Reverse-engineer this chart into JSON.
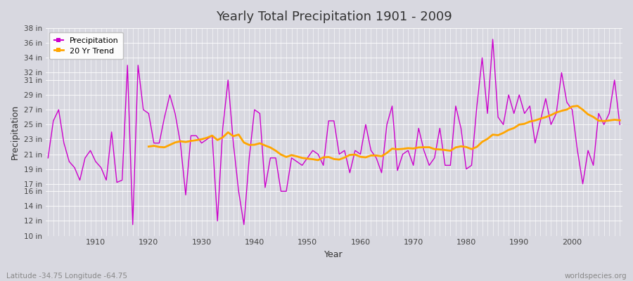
{
  "title": "Yearly Total Precipitation 1901 - 2009",
  "xlabel": "Year",
  "ylabel": "Precipitation",
  "subtitle": "Latitude -34.75 Longitude -64.75",
  "watermark": "worldspecies.org",
  "years": [
    1901,
    1902,
    1903,
    1904,
    1905,
    1906,
    1907,
    1908,
    1909,
    1910,
    1911,
    1912,
    1913,
    1914,
    1915,
    1916,
    1917,
    1918,
    1919,
    1920,
    1921,
    1922,
    1923,
    1924,
    1925,
    1926,
    1927,
    1928,
    1929,
    1930,
    1931,
    1932,
    1933,
    1934,
    1935,
    1936,
    1937,
    1938,
    1939,
    1940,
    1941,
    1942,
    1943,
    1944,
    1945,
    1946,
    1947,
    1948,
    1949,
    1950,
    1951,
    1952,
    1953,
    1954,
    1955,
    1956,
    1957,
    1958,
    1959,
    1960,
    1961,
    1962,
    1963,
    1964,
    1965,
    1966,
    1967,
    1968,
    1969,
    1970,
    1971,
    1972,
    1973,
    1974,
    1975,
    1976,
    1977,
    1978,
    1979,
    1980,
    1981,
    1982,
    1983,
    1984,
    1985,
    1986,
    1987,
    1988,
    1989,
    1990,
    1991,
    1992,
    1993,
    1994,
    1995,
    1996,
    1997,
    1998,
    1999,
    2000,
    2001,
    2002,
    2003,
    2004,
    2005,
    2006,
    2007,
    2008,
    2009
  ],
  "precip_in": [
    20.5,
    25.5,
    27.0,
    22.5,
    20.0,
    19.2,
    17.5,
    20.5,
    21.5,
    20.0,
    19.2,
    17.5,
    24.0,
    17.2,
    17.5,
    33.0,
    11.5,
    33.0,
    27.0,
    26.5,
    22.5,
    22.5,
    26.0,
    29.0,
    26.5,
    22.5,
    15.5,
    23.5,
    23.5,
    22.5,
    23.0,
    23.5,
    12.0,
    24.5,
    31.0,
    22.5,
    16.0,
    11.5,
    20.5,
    27.0,
    26.5,
    16.5,
    20.5,
    20.5,
    16.0,
    16.0,
    20.5,
    20.0,
    19.5,
    20.5,
    21.5,
    21.0,
    19.5,
    25.5,
    25.5,
    21.0,
    21.5,
    18.5,
    21.5,
    21.0,
    25.0,
    21.5,
    20.5,
    18.5,
    25.0,
    27.5,
    18.8,
    21.0,
    21.5,
    19.5,
    24.5,
    21.5,
    19.5,
    20.5,
    24.5,
    19.5,
    19.5,
    27.5,
    24.5,
    19.0,
    19.5,
    27.5,
    34.0,
    26.5,
    36.5,
    26.0,
    25.0,
    29.0,
    26.5,
    29.0,
    26.5,
    27.5,
    22.5,
    25.5,
    28.5,
    25.0,
    26.5,
    32.0,
    28.0,
    27.0,
    21.5,
    17.0,
    21.5,
    19.5,
    26.5,
    25.0,
    26.5,
    31.0,
    25.0
  ],
  "precip_color": "#cc00cc",
  "trend_color": "#ffa500",
  "bg_color": "#d8d8e0",
  "plot_bg_color": "#d8d8e0",
  "grid_color": "#ffffff",
  "ylim_min": 10,
  "ylim_max": 38,
  "ytick_labels": [
    "10 in",
    "12 in",
    "14 in",
    "16 in",
    "17 in",
    "19 in",
    "21 in",
    "23 in",
    "25 in",
    "27 in",
    "29 in",
    "31 in",
    "32 in",
    "34 in",
    "36 in",
    "38 in"
  ],
  "ytick_values": [
    10,
    12,
    14,
    16,
    17,
    19,
    21,
    23,
    25,
    27,
    29,
    31,
    32,
    34,
    36,
    38
  ],
  "trend_window": 20,
  "x_ticks": [
    1910,
    1920,
    1930,
    1940,
    1950,
    1960,
    1970,
    1980,
    1990,
    2000
  ]
}
